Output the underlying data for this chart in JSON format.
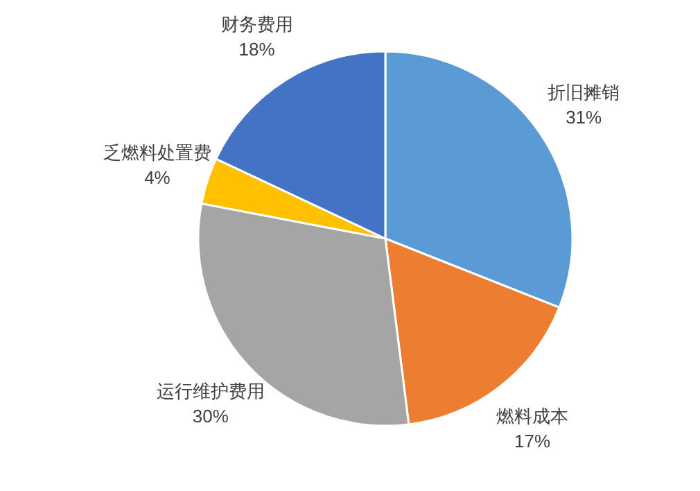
{
  "chart_data": {
    "type": "pie",
    "categories": [
      "折旧摊销",
      "燃料成本",
      "运行维护费用",
      "乏燃料处置费",
      "财务费用"
    ],
    "values": [
      31,
      17,
      30,
      4,
      18
    ],
    "colors": [
      "#5b9bd5",
      "#ed7d31",
      "#a5a5a5",
      "#ffc000",
      "#4472c4"
    ],
    "value_labels": [
      "31%",
      "17%",
      "30%",
      "4%",
      "18%"
    ]
  }
}
